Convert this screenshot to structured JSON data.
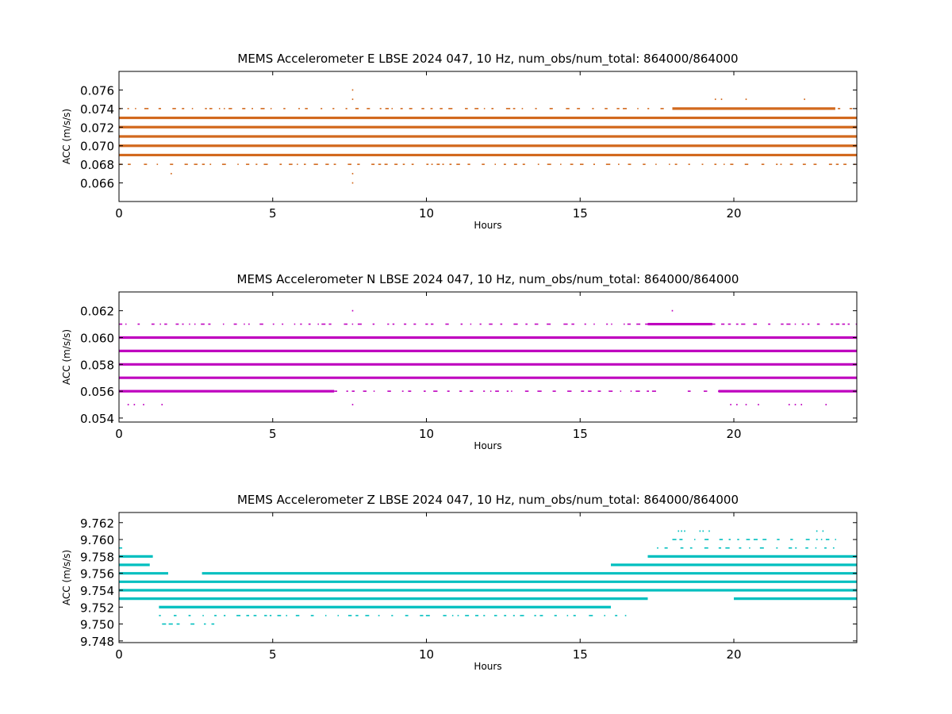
{
  "chart_data": [
    {
      "type": "scatter",
      "title": "MEMS Accelerometer E LBSE 2024 047, 10 Hz, num_obs/num_total: 864000/864000",
      "xlabel": "Hours",
      "ylabel": "ACC (m/s/s)",
      "xlim": [
        0,
        24
      ],
      "ylim": [
        0.064,
        0.078
      ],
      "xticks": [
        0,
        5,
        10,
        15,
        20
      ],
      "xtick_labels": [
        "0",
        "5",
        "10",
        "15",
        "20"
      ],
      "yticks": [
        0.066,
        0.068,
        0.07,
        0.072,
        0.074,
        0.076
      ],
      "ytick_labels": [
        "0.066",
        "0.068",
        "0.070",
        "0.072",
        "0.074",
        "0.076"
      ],
      "color": "#d2691e",
      "grid": false,
      "series": [
        {
          "values_y": 0.071,
          "density": "continuous",
          "x_ranges": [
            [
              0,
              24
            ]
          ]
        },
        {
          "values_y": 0.07,
          "density": "continuous",
          "x_ranges": [
            [
              0,
              24
            ]
          ]
        },
        {
          "values_y": 0.072,
          "density": "continuous",
          "x_ranges": [
            [
              0,
              24
            ]
          ]
        },
        {
          "values_y": 0.069,
          "density": "continuous",
          "x_ranges": [
            [
              0,
              24
            ]
          ]
        },
        {
          "values_y": 0.073,
          "density": "continuous",
          "x_ranges": [
            [
              0,
              24
            ]
          ]
        },
        {
          "values_y": 0.068,
          "density": "sparse",
          "x_ranges": [
            [
              0,
              24
            ]
          ]
        },
        {
          "values_y": 0.074,
          "density": "sparse",
          "x_ranges": [
            [
              0,
              24
            ]
          ]
        },
        {
          "values_y": 0.074,
          "density": "continuous",
          "x_ranges": [
            [
              18,
              23.3
            ]
          ]
        },
        {
          "values_y": 0.075,
          "density": "isolated",
          "x": [
            7.6,
            19.4,
            19.6,
            20.4,
            22.3
          ]
        },
        {
          "values_y": 0.076,
          "density": "isolated",
          "x": [
            7.6
          ]
        },
        {
          "values_y": 0.067,
          "density": "isolated",
          "x": [
            1.7,
            7.6
          ]
        },
        {
          "values_y": 0.066,
          "density": "isolated",
          "x": [
            7.6
          ]
        }
      ]
    },
    {
      "type": "scatter",
      "title": "MEMS Accelerometer N LBSE 2024 047, 10 Hz, num_obs/num_total: 864000/864000",
      "xlabel": "Hours",
      "ylabel": "ACC (m/s/s)",
      "xlim": [
        0,
        24
      ],
      "ylim": [
        0.0537,
        0.0634
      ],
      "xticks": [
        0,
        5,
        10,
        15,
        20
      ],
      "xtick_labels": [
        "0",
        "5",
        "10",
        "15",
        "20"
      ],
      "yticks": [
        0.054,
        0.056,
        0.058,
        0.06,
        0.062
      ],
      "ytick_labels": [
        "0.054",
        "0.056",
        "0.058",
        "0.060",
        "0.062"
      ],
      "color": "#bf00bf",
      "grid": false,
      "series": [
        {
          "values_y": 0.058,
          "density": "continuous",
          "x_ranges": [
            [
              0,
              24
            ]
          ]
        },
        {
          "values_y": 0.059,
          "density": "continuous",
          "x_ranges": [
            [
              0,
              24
            ]
          ]
        },
        {
          "values_y": 0.057,
          "density": "continuous",
          "x_ranges": [
            [
              0,
              24
            ]
          ]
        },
        {
          "values_y": 0.06,
          "density": "continuous",
          "x_ranges": [
            [
              0,
              24
            ]
          ]
        },
        {
          "values_y": 0.056,
          "density": "continuous",
          "x_ranges": [
            [
              0,
              7.0
            ],
            [
              19.5,
              24
            ]
          ]
        },
        {
          "values_y": 0.056,
          "density": "sparse",
          "x_ranges": [
            [
              7.0,
              17.5
            ],
            [
              18.5,
              19.5
            ]
          ]
        },
        {
          "values_y": 0.061,
          "density": "sparse",
          "x_ranges": [
            [
              0,
              24
            ]
          ]
        },
        {
          "values_y": 0.061,
          "density": "continuous",
          "x_ranges": [
            [
              17.2,
              19.3
            ]
          ]
        },
        {
          "values_y": 0.055,
          "density": "isolated",
          "x": [
            0.3,
            0.5,
            0.8,
            1.4,
            7.6,
            19.9,
            20.1,
            20.4,
            20.8,
            21.8,
            22.0,
            22.2,
            23.0
          ]
        },
        {
          "values_y": 0.062,
          "density": "isolated",
          "x": [
            7.6,
            18.0
          ]
        }
      ]
    },
    {
      "type": "scatter",
      "title": "MEMS Accelerometer Z LBSE 2024 047, 10 Hz, num_obs/num_total: 864000/864000",
      "xlabel": "Hours",
      "ylabel": "ACC (m/s/s)",
      "xlim": [
        0,
        24
      ],
      "ylim": [
        9.7478,
        9.7632
      ],
      "xticks": [
        0,
        5,
        10,
        15,
        20
      ],
      "xtick_labels": [
        "0",
        "5",
        "10",
        "15",
        "20"
      ],
      "yticks": [
        9.748,
        9.75,
        9.752,
        9.754,
        9.756,
        9.758,
        9.76,
        9.762
      ],
      "ytick_labels": [
        "9.748",
        "9.750",
        "9.752",
        "9.754",
        "9.756",
        "9.758",
        "9.760",
        "9.762"
      ],
      "color": "#00bfbf",
      "grid": false,
      "series": [
        {
          "values_y": 9.755,
          "density": "continuous",
          "x_ranges": [
            [
              0,
              24
            ]
          ]
        },
        {
          "values_y": 9.754,
          "density": "continuous",
          "x_ranges": [
            [
              0,
              24
            ]
          ]
        },
        {
          "values_y": 9.756,
          "density": "continuous",
          "x_ranges": [
            [
              0,
              1.6
            ],
            [
              2.7,
              24
            ]
          ]
        },
        {
          "values_y": 9.753,
          "density": "continuous",
          "x_ranges": [
            [
              0,
              17.2
            ],
            [
              20.0,
              24
            ]
          ]
        },
        {
          "values_y": 9.752,
          "density": "continuous",
          "x_ranges": [
            [
              1.3,
              16.0
            ]
          ]
        },
        {
          "values_y": 9.757,
          "density": "continuous",
          "x_ranges": [
            [
              0,
              1.0
            ],
            [
              16.0,
              24
            ]
          ]
        },
        {
          "values_y": 9.758,
          "density": "continuous",
          "x_ranges": [
            [
              0,
              1.1
            ],
            [
              17.2,
              24
            ]
          ]
        },
        {
          "values_y": 9.751,
          "density": "sparse",
          "x_ranges": [
            [
              1.3,
              16.5
            ]
          ]
        },
        {
          "values_y": 9.75,
          "density": "sparse",
          "x_ranges": [
            [
              1.4,
              3.1
            ]
          ]
        },
        {
          "values_y": 9.759,
          "density": "sparse",
          "x_ranges": [
            [
              0,
              0.4
            ],
            [
              17.5,
              23.5
            ]
          ]
        },
        {
          "values_y": 9.76,
          "density": "sparse",
          "x_ranges": [
            [
              18.0,
              23.3
            ]
          ]
        },
        {
          "values_y": 9.761,
          "density": "isolated",
          "x": [
            18.2,
            18.3,
            18.4,
            18.9,
            19.0,
            19.2,
            22.7,
            22.9
          ]
        }
      ]
    }
  ]
}
